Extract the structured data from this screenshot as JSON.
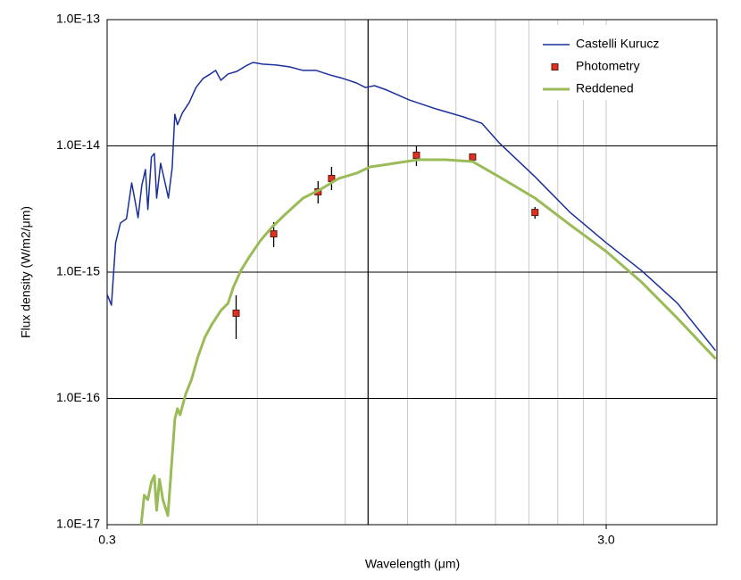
{
  "chart_data": {
    "type": "line",
    "x_label": "Wavelength (μm)",
    "y_label": "Flux density (W/m2/μm)",
    "x_scale": "log",
    "y_scale": "log",
    "grid": true,
    "legend": "upper right",
    "xlim": [
      0.3,
      5
    ],
    "ylim": [
      1e-17,
      1e-13
    ],
    "xticks": [
      0.3,
      {
        "value": 3,
        "label": "3.0"
      }
    ],
    "xgrid_major": [
      1
    ],
    "xgrid_minor": [
      0.6,
      0.9,
      1.2,
      1.5,
      1.8,
      2.1,
      2.4,
      2.7,
      3.0
    ],
    "yticks": [
      {
        "value": 1e-17,
        "label": "1.0E-17"
      },
      {
        "value": 1e-16,
        "label": "1.0E-16"
      },
      {
        "value": 1e-15,
        "label": "1.0E-15"
      },
      {
        "value": 1e-14,
        "label": "1.0E-14"
      },
      {
        "value": 1e-13,
        "label": "1.0E-13"
      }
    ],
    "series": [
      {
        "name": "Castelli Kurucz",
        "color": "#1a2f9a",
        "mode": "line",
        "width": 1.5,
        "x": [
          0.3,
          0.306,
          0.312,
          0.319,
          0.328,
          0.336,
          0.342,
          0.346,
          0.352,
          0.358,
          0.362,
          0.368,
          0.373,
          0.377,
          0.384,
          0.392,
          0.398,
          0.405,
          0.41,
          0.415,
          0.425,
          0.438,
          0.452,
          0.467,
          0.483,
          0.495,
          0.507,
          0.524,
          0.546,
          0.569,
          0.588,
          0.615,
          0.655,
          0.697,
          0.741,
          0.787,
          0.838,
          0.891,
          0.948,
          0.988,
          1.03,
          1.09,
          1.21,
          1.37,
          1.55,
          1.69,
          1.83,
          2.16,
          2.54,
          3.0,
          3.53,
          4.17,
          4.97
        ],
        "values": [
          6.65e-16,
          5.48e-16,
          1.71e-15,
          2.45e-15,
          2.65e-15,
          5.09e-15,
          3.5e-15,
          2.7e-15,
          4.85e-15,
          6.5e-15,
          3.13e-15,
          8.17e-15,
          8.71e-15,
          3.86e-15,
          7.28e-15,
          5.09e-15,
          3.86e-15,
          6.71e-15,
          1.78e-14,
          1.47e-14,
          1.84e-14,
          2.2e-14,
          2.9e-14,
          3.42e-14,
          3.71e-14,
          3.96e-14,
          3.31e-14,
          3.71e-14,
          3.89e-14,
          4.3e-14,
          4.58e-14,
          4.44e-14,
          4.37e-14,
          4.22e-14,
          3.96e-14,
          3.96e-14,
          3.65e-14,
          3.42e-14,
          3.15e-14,
          2.9e-14,
          3e-14,
          2.77e-14,
          2.31e-14,
          1.96e-14,
          1.7e-14,
          1.51e-14,
          1.06e-14,
          5.7e-15,
          2.97e-15,
          1.71e-15,
          1.03e-15,
          5.66e-16,
          2.39e-16
        ]
      },
      {
        "name": "Photometry",
        "color": "#e03020",
        "mode": "markers",
        "x": [
          0.544,
          0.647,
          0.794,
          0.845,
          1.25,
          1.62,
          2.16
        ],
        "values": [
          4.73e-16,
          2.01e-15,
          4.33e-15,
          5.52e-15,
          8.43e-15,
          8.17e-15,
          2.97e-15
        ],
        "error_low": [
          2.95e-16,
          1.58e-15,
          3.5e-15,
          4.47e-15,
          6.93e-15,
          7.52e-15,
          2.65e-15
        ],
        "error_high": [
          6.55e-16,
          2.49e-15,
          5.26e-15,
          6.82e-15,
          1.01e-14,
          8.71e-15,
          3.28e-15
        ]
      },
      {
        "name": "Reddened",
        "color": "#9bbb59",
        "mode": "line",
        "width": 3,
        "x": [
          0.351,
          0.356,
          0.362,
          0.368,
          0.373,
          0.377,
          0.382,
          0.388,
          0.397,
          0.401,
          0.41,
          0.415,
          0.42,
          0.431,
          0.443,
          0.456,
          0.471,
          0.487,
          0.507,
          0.524,
          0.537,
          0.556,
          0.578,
          0.608,
          0.641,
          0.683,
          0.741,
          0.804,
          0.873,
          0.948,
          1.01,
          1.07,
          1.16,
          1.26,
          1.43,
          1.62,
          1.83,
          2.16,
          2.54,
          3.0,
          3.53,
          4.17,
          4.97
        ],
        "values": [
          1e-17,
          1.71e-17,
          1.58e-17,
          2.18e-17,
          2.45e-17,
          1.3e-17,
          2.29e-17,
          1.58e-17,
          1.18e-17,
          2.01e-17,
          6.83e-17,
          8.3e-17,
          7.4e-17,
          1.08e-16,
          1.42e-16,
          2.13e-16,
          3.05e-16,
          3.89e-16,
          4.97e-16,
          5.66e-16,
          7.59e-16,
          1.03e-15,
          1.32e-15,
          1.77e-15,
          2.26e-15,
          2.88e-15,
          3.86e-15,
          4.54e-15,
          5.52e-15,
          6.08e-15,
          6.82e-15,
          7.05e-15,
          7.4e-15,
          7.77e-15,
          7.77e-15,
          7.52e-15,
          5.7e-15,
          3.86e-15,
          2.37e-15,
          1.46e-15,
          8.36e-16,
          4.3e-16,
          2.06e-16
        ]
      }
    ]
  }
}
